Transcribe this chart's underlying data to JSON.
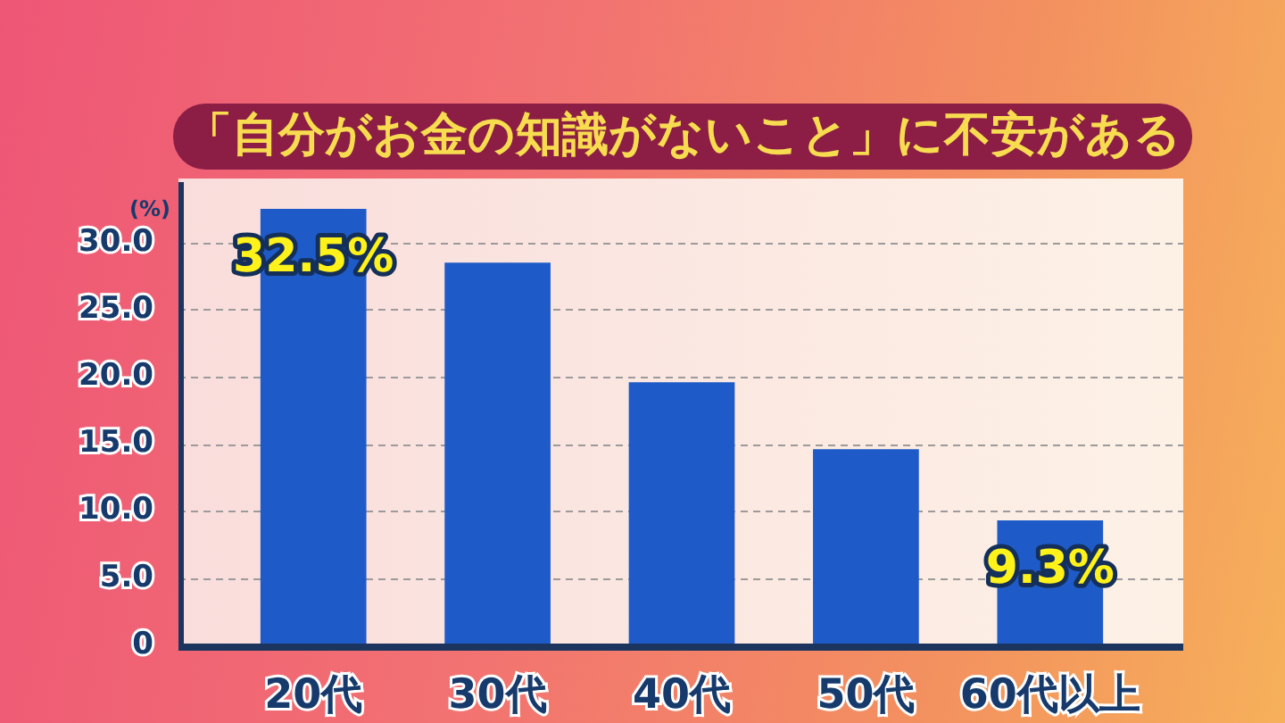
{
  "chart_data": {
    "type": "bar",
    "title": "「自分がお金の知識がないこと」に不安がある",
    "ylabel": "(%)",
    "categories": [
      "20代",
      "30代",
      "40代",
      "50代",
      "60代以上"
    ],
    "values": [
      32.5,
      28.5,
      19.6,
      14.6,
      9.3
    ],
    "value_labels": [
      "32.5%",
      null,
      null,
      null,
      "9.3%"
    ],
    "color": "#1f5bc8",
    "ylim": [
      0,
      34.5
    ],
    "yticks": [
      0,
      {
        "value": 5,
        "label": "5.0"
      },
      {
        "value": 10,
        "label": "10.0"
      },
      {
        "value": 15,
        "label": "15.0"
      },
      {
        "value": 20,
        "label": "20.0"
      },
      {
        "value": 25,
        "label": "25.0"
      },
      {
        "value": 30,
        "label": "30.0"
      }
    ],
    "grid": true
  }
}
